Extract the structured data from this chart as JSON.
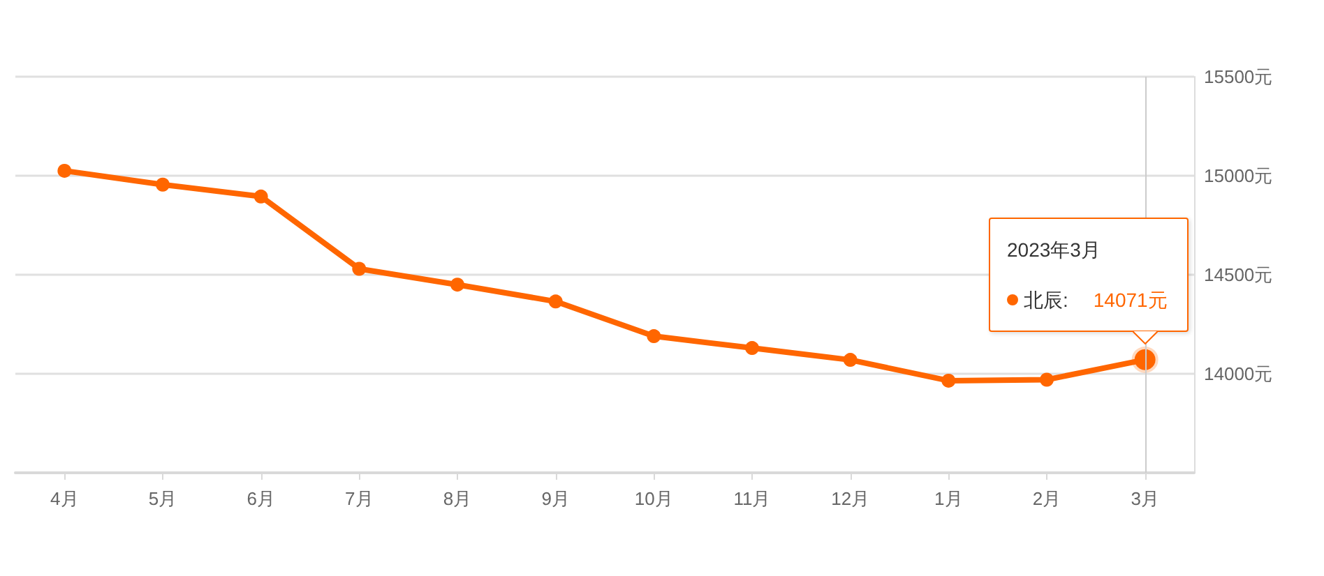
{
  "chart_data": {
    "type": "line",
    "categories": [
      "4月",
      "5月",
      "6月",
      "7月",
      "8月",
      "9月",
      "10月",
      "11月",
      "12月",
      "1月",
      "2月",
      "3月"
    ],
    "series": [
      {
        "name": "北辰:",
        "color": "#ff6600",
        "values": [
          15025,
          14955,
          14895,
          14530,
          14450,
          14365,
          14190,
          14130,
          14070,
          13965,
          13970,
          14071
        ],
        "value_labels": [
          null,
          null,
          null,
          null,
          null,
          null,
          null,
          null,
          null,
          null,
          null,
          "14071元"
        ]
      }
    ],
    "ylim": [
      13500,
      15500
    ],
    "yticks": [
      {
        "value": 14000,
        "label": "14000元"
      },
      {
        "value": 14500,
        "label": "14500元"
      },
      {
        "value": 15000,
        "label": "15000元"
      },
      {
        "value": 15500,
        "label": "15500元"
      }
    ],
    "grid": "y",
    "marker": "circle",
    "ref_lines": [
      {
        "axis": "x",
        "value": "3月",
        "color": "#cccccc"
      }
    ],
    "annotations": [
      "2023年3月"
    ]
  }
}
